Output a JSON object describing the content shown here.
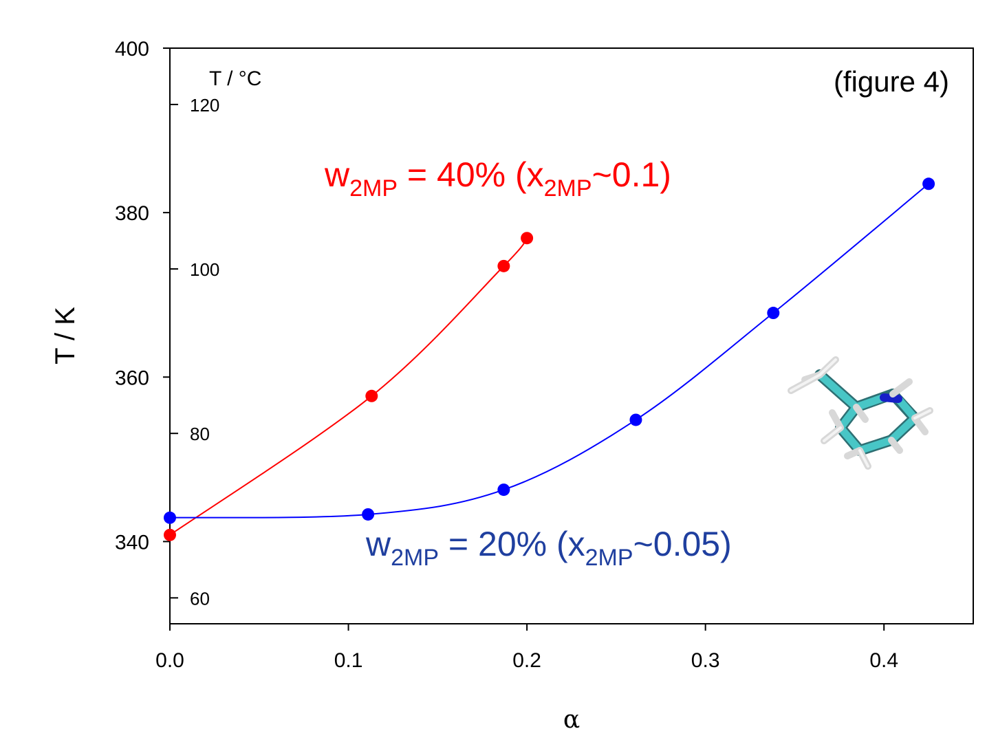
{
  "chart_data": {
    "type": "line",
    "annotation_figure": "(figure 4)",
    "xlabel": "α",
    "ylabel": "T / K",
    "secondary_axis_label": "T / °C",
    "xlim": [
      0.0,
      0.45
    ],
    "ylim": [
      330,
      400
    ],
    "x_ticks": [
      "0.0",
      "0.1",
      "0.2",
      "0.3",
      "0.4"
    ],
    "y_ticks": [
      "340",
      "360",
      "380",
      "400"
    ],
    "celsius_ticks": [
      "60",
      "80",
      "100",
      "120"
    ],
    "celsius_tick_values": [
      60,
      80,
      100,
      120
    ],
    "series": [
      {
        "label_main": "w",
        "label_sub": "2MP",
        "label_rest": " = 40% (x",
        "label_sub2": "2MP",
        "label_end": "~0.1)",
        "color": "#ff0000",
        "x": [
          0.0,
          0.113,
          0.187,
          0.2
        ],
        "y": [
          340.8,
          357.7,
          373.5,
          376.9
        ]
      },
      {
        "label_main": "w",
        "label_sub": "2MP",
        "label_rest": " = 20% (x",
        "label_sub2": "2MP",
        "label_end": "~0.05)",
        "color": "#0000ff",
        "label_color": "#1f3f9f",
        "x": [
          0.0,
          0.111,
          0.187,
          0.261,
          0.338,
          0.425
        ],
        "y": [
          342.9,
          343.3,
          346.3,
          354.8,
          367.8,
          383.5
        ]
      }
    ],
    "inset_image": "2-methylpiperidine-molecule"
  }
}
